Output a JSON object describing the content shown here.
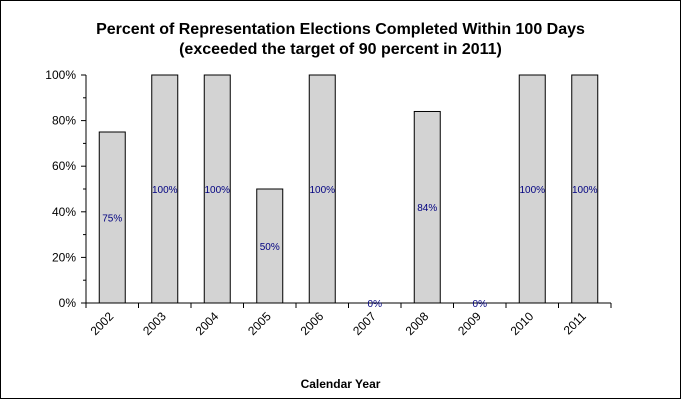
{
  "chart_data": {
    "type": "bar",
    "title": "Percent of Representation Elections Completed Within 100 Days",
    "subtitle": "(exceeded the target of 90 percent in 2011)",
    "xlabel": "Calendar Year",
    "ylabel": "",
    "categories": [
      "2002",
      "2003",
      "2004",
      "2005",
      "2006",
      "2007",
      "2008",
      "2009",
      "2010",
      "2011"
    ],
    "values": [
      75,
      100,
      100,
      50,
      100,
      0,
      84,
      0,
      100,
      100
    ],
    "data_labels": [
      "75%",
      "100%",
      "100%",
      "50%",
      "100%",
      "0%",
      "84%",
      "0%",
      "100%",
      "100%"
    ],
    "ylim": [
      0,
      100
    ],
    "yticks": [
      0,
      20,
      40,
      60,
      80,
      100
    ],
    "ytick_labels": [
      "0%",
      "20%",
      "40%",
      "60%",
      "80%",
      "100%"
    ],
    "grid": false,
    "legend": "none",
    "colors": {
      "bar_fill": "#d3d3d3",
      "bar_stroke": "#000000",
      "data_label": "#000080"
    }
  }
}
